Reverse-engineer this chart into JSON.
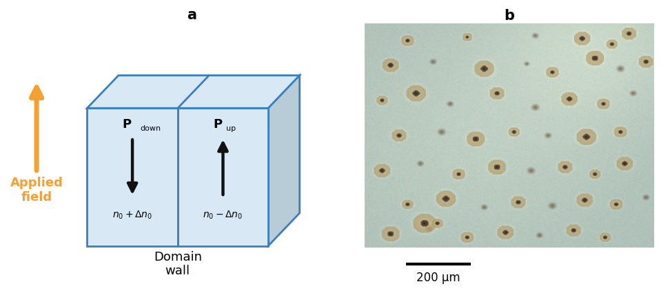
{
  "fig_width": 9.72,
  "fig_height": 4.29,
  "dpi": 100,
  "bg_color": "#ffffff",
  "label_a": "a",
  "label_b": "b",
  "label_fontsize": 15,
  "label_fontweight": "bold",
  "box_face_color": "#d9e8f5",
  "box_edge_color": "#3a7ec2",
  "box_edge_width": 2.0,
  "side_face_color": "#b8ccd8",
  "arrow_color_field": "#f5a030",
  "arrow_color_domain": "#111111",
  "applied_field_color": "#f5a030",
  "applied_field_fontsize": 13,
  "domain_wall_fontsize": 13,
  "scalebar_text": "200 μm",
  "scalebar_fontsize": 12
}
